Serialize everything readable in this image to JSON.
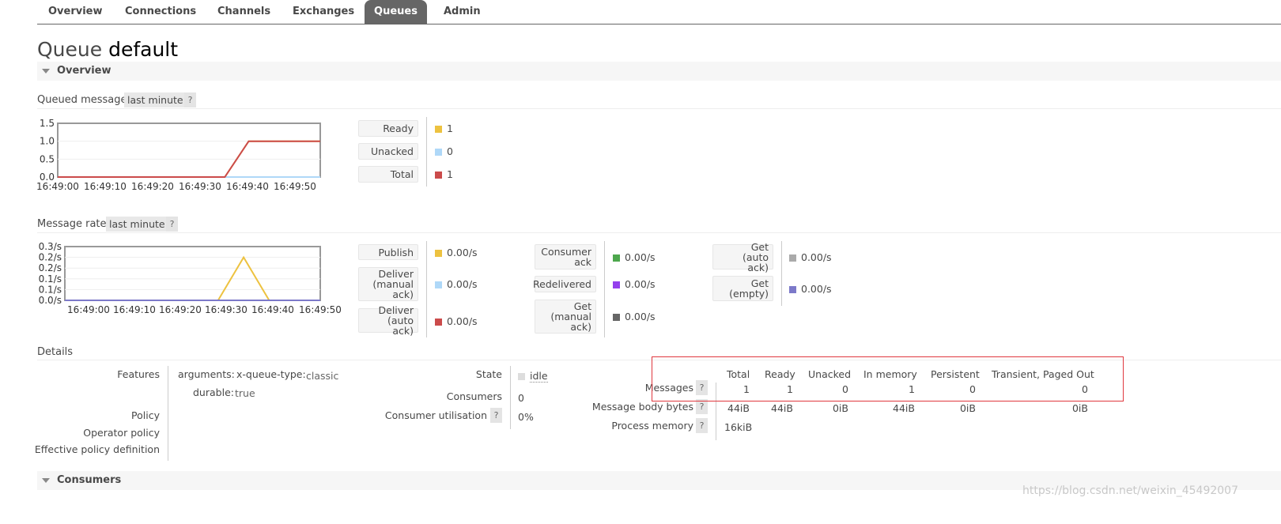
{
  "tabs": [
    {
      "label": "Overview",
      "active": false
    },
    {
      "label": "Connections",
      "active": false
    },
    {
      "label": "Channels",
      "active": false
    },
    {
      "label": "Exchanges",
      "active": false
    },
    {
      "label": "Queues",
      "active": true
    },
    {
      "label": "Admin",
      "active": false
    }
  ],
  "title": {
    "prefix": "Queue",
    "name": "default"
  },
  "sections": {
    "overview": "Overview",
    "consumers": "Consumers"
  },
  "queued_messages": {
    "label": "Queued messages",
    "range": "last minute",
    "help": "?",
    "legend": [
      {
        "label": "Ready",
        "value": "1",
        "color": "#edc240"
      },
      {
        "label": "Unacked",
        "value": "0",
        "color": "#afd8f8"
      },
      {
        "label": "Total",
        "value": "1",
        "color": "#cb4b4b"
      }
    ]
  },
  "message_rates": {
    "label": "Message rates",
    "range": "last minute",
    "help": "?",
    "legend_col1": [
      {
        "label": "Publish",
        "value": "0.00/s",
        "color": "#edc240"
      },
      {
        "label": "Deliver (manual ack)",
        "value": "0.00/s",
        "color": "#afd8f8"
      },
      {
        "label": "Deliver (auto ack)",
        "value": "0.00/s",
        "color": "#cb4b4b"
      }
    ],
    "legend_col2": [
      {
        "label": "Consumer ack",
        "value": "0.00/s",
        "color": "#4da74d"
      },
      {
        "label": "Redelivered",
        "value": "0.00/s",
        "color": "#9440ed"
      },
      {
        "label": "Get (manual ack)",
        "value": "0.00/s",
        "color": "#666666"
      }
    ],
    "legend_col3": [
      {
        "label": "Get (auto ack)",
        "value": "0.00/s",
        "color": "#aaaaaa"
      },
      {
        "label": "Get (empty)",
        "value": "0.00/s",
        "color": "#7c79c9"
      }
    ]
  },
  "chart_data": [
    {
      "type": "line",
      "title": "",
      "x": [
        "16:49:00",
        "16:49:05",
        "16:49:10",
        "16:49:15",
        "16:49:20",
        "16:49:25",
        "16:49:30",
        "16:49:35",
        "16:49:40",
        "16:49:45",
        "16:49:50",
        "16:49:55"
      ],
      "x_ticks": [
        "16:49:00",
        "16:49:10",
        "16:49:20",
        "16:49:30",
        "16:49:40",
        "16:49:50"
      ],
      "y_ticks": [
        "0.0",
        "0.5",
        "1.0",
        "1.5"
      ],
      "ylim": [
        0,
        1.5
      ],
      "series": [
        {
          "name": "Ready",
          "color": "#edc240",
          "values": [
            0,
            0,
            0,
            0,
            0,
            0,
            0,
            0,
            1,
            1,
            1,
            1
          ]
        },
        {
          "name": "Unacked",
          "color": "#afd8f8",
          "values": [
            0,
            0,
            0,
            0,
            0,
            0,
            0,
            0,
            0,
            0,
            0,
            0
          ]
        },
        {
          "name": "Total",
          "color": "#cb4b4b",
          "values": [
            0,
            0,
            0,
            0,
            0,
            0,
            0,
            0,
            1,
            1,
            1,
            1
          ]
        }
      ],
      "grid": true
    },
    {
      "type": "line",
      "title": "",
      "x": [
        "16:49:00",
        "16:49:05",
        "16:49:10",
        "16:49:15",
        "16:49:20",
        "16:49:25",
        "16:49:30",
        "16:49:35",
        "16:49:40",
        "16:49:45",
        "16:49:50"
      ],
      "x_ticks": [
        "16:49:00",
        "16:49:10",
        "16:49:20",
        "16:49:30",
        "16:49:40",
        "16:49:50"
      ],
      "y_ticks": [
        "0.0/s",
        "0.1/s",
        "0.1/s",
        "0.2/s",
        "0.2/s",
        "0.3/s"
      ],
      "ylim": [
        0,
        0.25
      ],
      "series": [
        {
          "name": "Publish",
          "color": "#edc240",
          "values": [
            0,
            0,
            0,
            0,
            0,
            0,
            0,
            0.2,
            0,
            0,
            0
          ]
        },
        {
          "name": "Get (empty)",
          "color": "#7c79c9",
          "values": [
            0,
            0,
            0,
            0,
            0,
            0,
            0,
            0,
            0,
            0,
            0
          ]
        }
      ],
      "grid": true
    }
  ],
  "details": {
    "label": "Details",
    "features_label": "Features",
    "arguments_label": "arguments:",
    "arg_key": "x-queue-type:",
    "arg_value": "classic",
    "durable_label": "durable:",
    "durable_value": "true",
    "policy_label": "Policy",
    "operator_policy_label": "Operator policy",
    "effective_policy_label": "Effective policy definition",
    "state_label": "State",
    "state_value": "idle",
    "consumers_label": "Consumers",
    "consumers_value": "0",
    "utilisation_label": "Consumer utilisation",
    "utilisation_value": "0%",
    "help": "?",
    "stats_headers": [
      "Total",
      "Ready",
      "Unacked",
      "In memory",
      "Persistent",
      "Transient, Paged Out"
    ],
    "stats_rows": [
      {
        "label": "Messages",
        "values": [
          "1",
          "1",
          "0",
          "1",
          "0",
          "0"
        ]
      },
      {
        "label": "Message body bytes",
        "values": [
          "44iB",
          "44iB",
          "0iB",
          "44iB",
          "0iB",
          "0iB"
        ]
      },
      {
        "label": "Process memory",
        "values": [
          "16kiB"
        ]
      }
    ]
  },
  "watermark": "https://blog.csdn.net/weixin_45492007"
}
